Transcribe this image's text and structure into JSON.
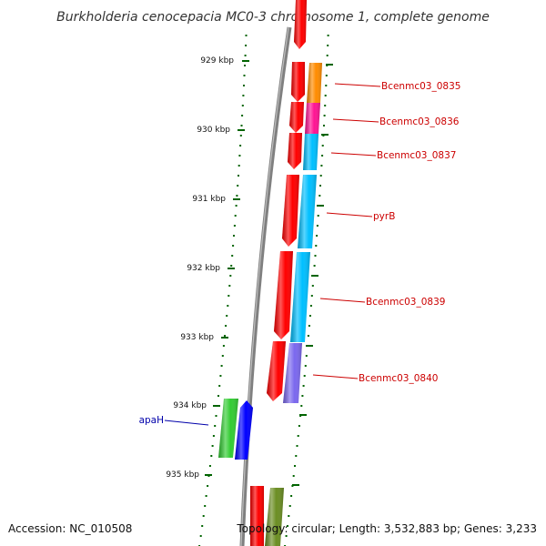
{
  "title": "Burkholderia cenocepacia MC0-3 chromosome 1, complete genome",
  "ticks": [
    "929 kbp",
    "930 kbp",
    "931 kbp",
    "932 kbp",
    "933 kbp",
    "934 kbp",
    "935 kbp"
  ],
  "genes": [
    {
      "label": "Bcenmc03_0835",
      "color": "#ff8c00",
      "label_color": "#cc0000"
    },
    {
      "label": "Bcenmc03_0836",
      "color": "#ff1493",
      "label_color": "#cc0000"
    },
    {
      "label": "Bcenmc03_0837",
      "color": "#00bfff",
      "label_color": "#cc0000"
    },
    {
      "label": "pyrB",
      "color": "#00bfff",
      "label_color": "#cc0000"
    },
    {
      "label": "Bcenmc03_0839",
      "color": "#00bfff",
      "label_color": "#cc0000"
    },
    {
      "label": "Bcenmc03_0840",
      "color": "#7b68ee",
      "label_color": "#cc0000"
    },
    {
      "label": "apaH",
      "color": "#0000ff",
      "label_color": "#0000aa"
    }
  ],
  "colors": {
    "cds": "#ff0000",
    "green_gene": "#33cc33",
    "olive_gene": "#6b8e23",
    "backbone": "#808080",
    "tick": "#006400"
  },
  "footer": {
    "accession": "Accession: NC_010508",
    "summary": "Topology: circular; Length: 3,532,883 bp; Genes: 3,233"
  }
}
